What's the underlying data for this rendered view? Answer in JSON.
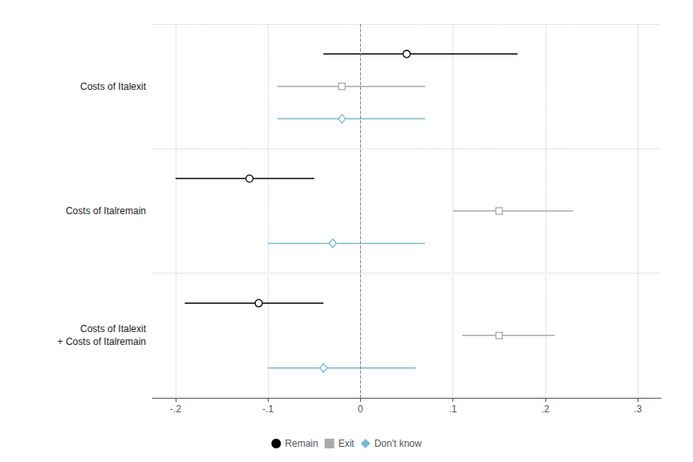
{
  "chart_data": {
    "type": "dot_whisker",
    "orientation": "horizontal",
    "categories": [
      "Costs of Italexit",
      "Costs of Italremain",
      "Costs of Italexit\n+ Costs of Italremain"
    ],
    "series": [
      {
        "name": "Remain",
        "color": "#000000",
        "marker": "circle",
        "values": [
          0.05,
          -0.12,
          -0.11
        ],
        "ci_lo": [
          -0.04,
          -0.2,
          -0.19
        ],
        "ci_hi": [
          0.17,
          -0.05,
          -0.04
        ]
      },
      {
        "name": "Exit",
        "color": "#aaaaaa",
        "marker": "square",
        "values": [
          -0.02,
          0.15,
          0.15
        ],
        "ci_lo": [
          -0.09,
          0.1,
          0.11
        ],
        "ci_hi": [
          0.07,
          0.23,
          0.21
        ]
      },
      {
        "name": "Don't know",
        "color": "#7bb8d4",
        "marker": "diamond",
        "values": [
          -0.02,
          -0.03,
          -0.04
        ],
        "ci_lo": [
          -0.09,
          -0.1,
          -0.1
        ],
        "ci_hi": [
          0.07,
          0.07,
          0.06
        ]
      }
    ],
    "xlim": [
      -0.225,
      0.325
    ],
    "xticks": [
      {
        "value": -0.2,
        "label": "-.2"
      },
      {
        "value": -0.1,
        "label": "-.1"
      },
      0,
      {
        "value": 0.1,
        "label": ".1"
      },
      {
        "value": 0.2,
        "label": ".2"
      },
      {
        "value": 0.3,
        "label": ".3"
      }
    ],
    "grid": true,
    "legend": "bottom",
    "reference_line": {
      "value": 0,
      "color": "#b07090"
    }
  }
}
